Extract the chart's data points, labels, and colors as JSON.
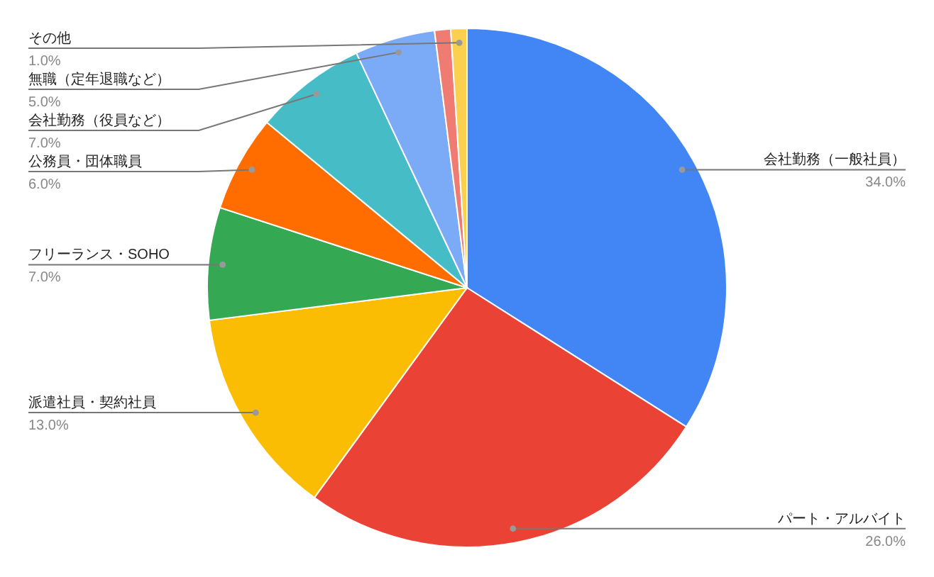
{
  "chart_data": {
    "type": "pie",
    "categories": [
      "会社勤務（一般社員）",
      "パート・アルバイト",
      "派遣社員・契約社員",
      "フリーランス・SOHO",
      "公務員・団体職員",
      "会社勤務（役員など）",
      "無職（定年退職など）",
      null,
      "その他"
    ],
    "values": [
      34,
      26,
      13,
      7,
      6,
      7,
      5,
      1,
      1
    ],
    "colors": [
      "#4285f4",
      "#ea4335",
      "#fbbc04",
      "#34a853",
      "#ff6d01",
      "#46bdc6",
      "#7baaf7",
      "#f07b72",
      "#fcd04f"
    ],
    "value_labels": [
      "34.0%",
      "26.0%",
      "13.0%",
      "7.0%",
      "6.0%",
      "7.0%",
      "5.0%",
      null,
      "1.0%"
    ]
  }
}
